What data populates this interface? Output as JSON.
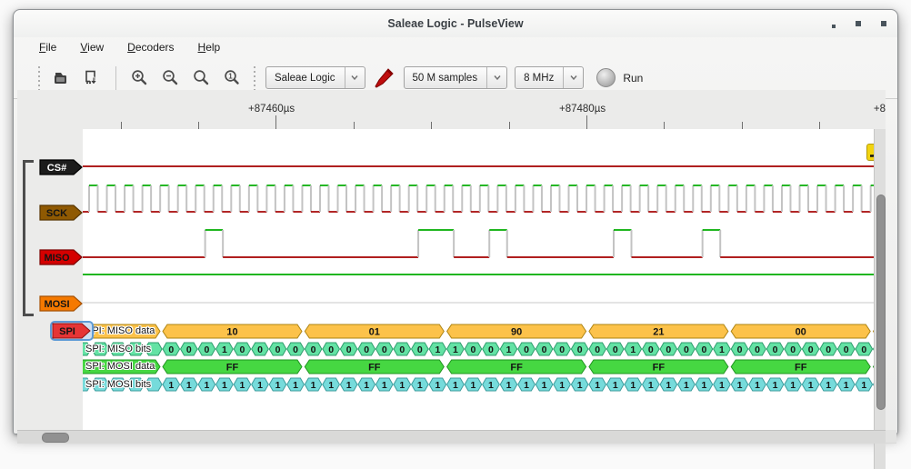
{
  "window": {
    "title": "Saleae Logic - PulseView",
    "controls": [
      "minimize",
      "maximize",
      "close"
    ]
  },
  "menu": {
    "items": [
      "File",
      "View",
      "Decoders",
      "Help"
    ]
  },
  "toolbar": {
    "device": "Saleae Logic",
    "samples": "50 M samples",
    "rate": "8 MHz",
    "run_label": "Run",
    "icons": [
      "open-file",
      "save-session",
      "zoom-in",
      "zoom-out",
      "zoom-fit",
      "zoom-one-to-one",
      "probe",
      "run-led"
    ]
  },
  "ruler": {
    "labels": [
      "+87460µs",
      "+87480µs",
      "+8"
    ]
  },
  "channels": [
    {
      "name": "CS#",
      "tag_fill": "#1c1c1c",
      "tag_stroke": "#000000",
      "tag_text": "#ffffff",
      "wave": "const_low"
    },
    {
      "name": "SCK",
      "tag_fill": "#8f5902",
      "tag_stroke": "#573501",
      "tag_text": "#141414",
      "wave": "clock"
    },
    {
      "name": "MISO",
      "tag_fill": "#d40000",
      "tag_stroke": "#7c0000",
      "tag_text": "#141414",
      "wave": "miso_bits"
    },
    {
      "name": "MOSI",
      "tag_fill": "#f57900",
      "tag_stroke": "#a65103",
      "tag_text": "#141414",
      "wave": "const_high"
    }
  ],
  "wave_colors": {
    "high": "#00ab00",
    "low": "#a40000",
    "edge": "#c3c3c3",
    "baseline": "#e4e4e4"
  },
  "trigger": {
    "type": "rising-edge",
    "fill": "#f2d411"
  },
  "decoder": {
    "tag": "SPI",
    "tag_fill": "#e63535",
    "tag_stroke": "#8c1010",
    "tag_border": "#5e9bd6",
    "rows": [
      {
        "label": "SPI: MISO data",
        "kind": "data",
        "fill": "#fcc24a",
        "stroke": "#ad8413",
        "text_color": "#141414",
        "values": [
          "10",
          "01",
          "90",
          "21",
          "00"
        ],
        "partial_left_text": "1"
      },
      {
        "label": "SPI: MISO bits",
        "kind": "bits",
        "fill": "#63e2a4",
        "stroke": "#2d9c6c",
        "text_color": "#141414",
        "bytes": [
          [
            0,
            0,
            0,
            1,
            0,
            0,
            0,
            0
          ],
          [
            0,
            0,
            0,
            0,
            0,
            0,
            0,
            1
          ],
          [
            1,
            0,
            0,
            1,
            0,
            0,
            0,
            0
          ],
          [
            0,
            0,
            1,
            0,
            0,
            0,
            0,
            1
          ],
          [
            0,
            0,
            0,
            0,
            0,
            0,
            0,
            0
          ]
        ],
        "partial_right_bit": "0"
      },
      {
        "label": "SPI: MOSI data",
        "kind": "data",
        "fill": "#46d742",
        "stroke": "#1f9420",
        "text_color": "#141414",
        "values": [
          "FF",
          "FF",
          "FF",
          "FF",
          "FF"
        ],
        "partial_left_text": "F"
      },
      {
        "label": "SPI: MOSI bits",
        "kind": "bits",
        "fill": "#76dbdb",
        "stroke": "#3c9c9c",
        "text_color": "#141414",
        "bytes": [
          [
            1,
            1,
            1,
            1,
            1,
            1,
            1,
            1
          ],
          [
            1,
            1,
            1,
            1,
            1,
            1,
            1,
            1
          ],
          [
            1,
            1,
            1,
            1,
            1,
            1,
            1,
            1
          ],
          [
            1,
            1,
            1,
            1,
            1,
            1,
            1,
            1
          ],
          [
            1,
            1,
            1,
            1,
            1,
            1,
            1,
            1
          ]
        ],
        "partial_right_bit": "1"
      }
    ]
  }
}
